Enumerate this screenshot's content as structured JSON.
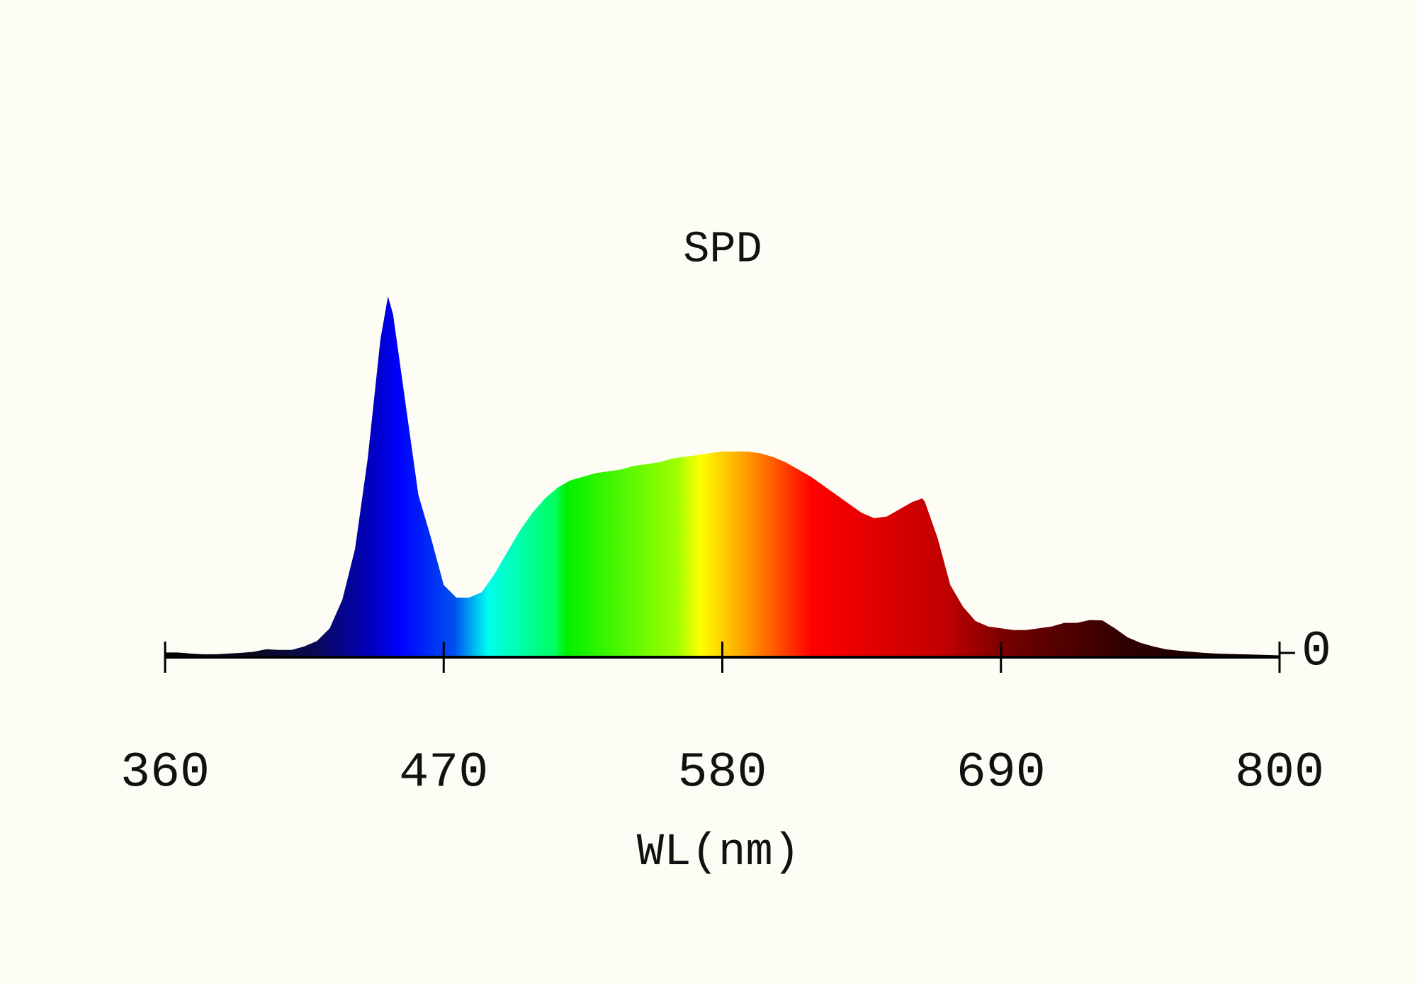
{
  "chart_data": {
    "type": "area",
    "title": "SPD",
    "x_label": "WL(nm)",
    "x": [
      360,
      365,
      370,
      375,
      380,
      385,
      390,
      395,
      400,
      405,
      410,
      415,
      420,
      425,
      430,
      435,
      440,
      445,
      448,
      450,
      455,
      460,
      465,
      470,
      475,
      480,
      485,
      490,
      495,
      500,
      505,
      510,
      515,
      520,
      525,
      530,
      535,
      540,
      545,
      550,
      555,
      560,
      565,
      570,
      575,
      580,
      585,
      590,
      595,
      600,
      605,
      610,
      615,
      620,
      625,
      630,
      635,
      640,
      645,
      650,
      655,
      659,
      660,
      665,
      670,
      675,
      680,
      685,
      690,
      695,
      700,
      705,
      710,
      715,
      720,
      725,
      730,
      735,
      740,
      745,
      750,
      755,
      760,
      765,
      770,
      775,
      780,
      785,
      790,
      795,
      800
    ],
    "values": [
      0.013,
      0.013,
      0.01,
      0.008,
      0.008,
      0.01,
      0.012,
      0.015,
      0.022,
      0.02,
      0.02,
      0.03,
      0.045,
      0.08,
      0.16,
      0.3,
      0.55,
      0.88,
      1.0,
      0.95,
      0.7,
      0.45,
      0.33,
      0.2,
      0.165,
      0.165,
      0.18,
      0.23,
      0.29,
      0.35,
      0.4,
      0.44,
      0.47,
      0.49,
      0.5,
      0.51,
      0.515,
      0.52,
      0.53,
      0.535,
      0.54,
      0.55,
      0.555,
      0.56,
      0.565,
      0.57,
      0.57,
      0.57,
      0.565,
      0.555,
      0.54,
      0.52,
      0.5,
      0.475,
      0.45,
      0.425,
      0.4,
      0.385,
      0.39,
      0.41,
      0.43,
      0.44,
      0.43,
      0.33,
      0.2,
      0.14,
      0.1,
      0.085,
      0.08,
      0.075,
      0.075,
      0.08,
      0.085,
      0.095,
      0.095,
      0.103,
      0.102,
      0.08,
      0.055,
      0.04,
      0.03,
      0.022,
      0.018,
      0.015,
      0.012,
      0.01,
      0.009,
      0.008,
      0.007,
      0.006,
      0.005
    ],
    "xlim": [
      360,
      800
    ],
    "xticks": [
      360,
      470,
      580,
      690,
      800
    ],
    "ylim": [
      0,
      1
    ],
    "yticks": [
      0
    ],
    "axis_color": "#000000"
  }
}
